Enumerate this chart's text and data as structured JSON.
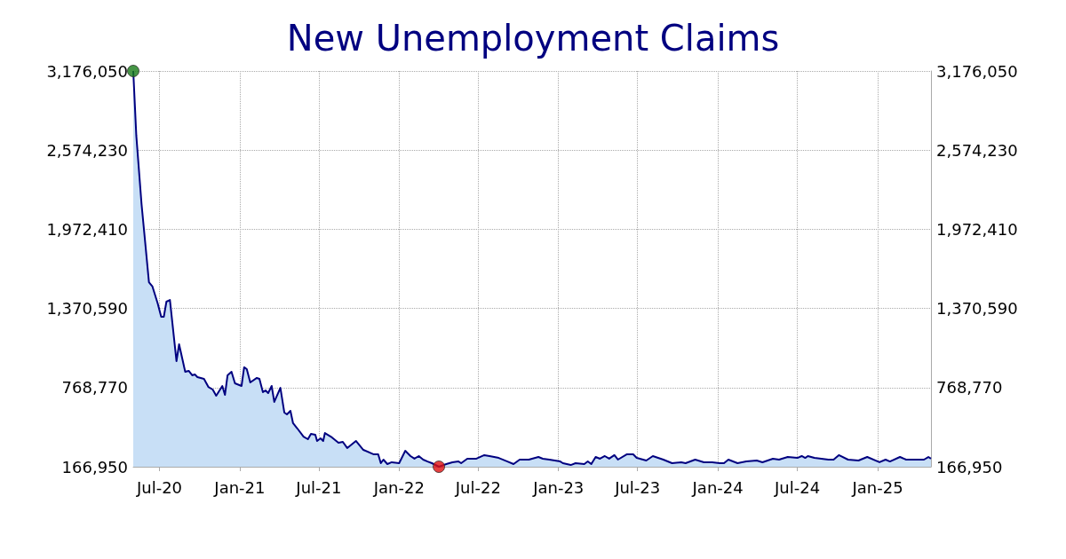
{
  "chart_data": {
    "type": "area",
    "title": "New Unemployment Claims",
    "marker": "none",
    "line_style": "solid",
    "grid": true,
    "xlim": [
      "2020-05-02",
      "2025-05-03"
    ],
    "xticks": [
      {
        "value": "2020-07-01",
        "label": "Jul-20"
      },
      {
        "value": "2021-01-01",
        "label": "Jan-21"
      },
      {
        "value": "2021-07-01",
        "label": "Jul-21"
      },
      {
        "value": "2022-01-01",
        "label": "Jan-22"
      },
      {
        "value": "2022-07-01",
        "label": "Jul-22"
      },
      {
        "value": "2023-01-01",
        "label": "Jan-23"
      },
      {
        "value": "2023-07-01",
        "label": "Jul-23"
      },
      {
        "value": "2024-01-01",
        "label": "Jan-24"
      },
      {
        "value": "2024-07-01",
        "label": "Jul-24"
      },
      {
        "value": "2025-01-01",
        "label": "Jan-25"
      }
    ],
    "ylim": [
      166950,
      3176050
    ],
    "yticks": [
      {
        "value": 166950,
        "label": "166,950"
      },
      {
        "value": 768770,
        "label": "768,770"
      },
      {
        "value": 1370590,
        "label": "1,370,590"
      },
      {
        "value": 1972410,
        "label": "1,972,410"
      },
      {
        "value": 2574230,
        "label": "2,574,230"
      },
      {
        "value": 3176050,
        "label": "3,176,050"
      }
    ],
    "y2lim": [
      166950,
      3176050
    ],
    "y2ticks": [
      {
        "value": 166950,
        "label": "166,950"
      },
      {
        "value": 768770,
        "label": "768,770"
      },
      {
        "value": 1370590,
        "label": "1,370,590"
      },
      {
        "value": 1972410,
        "label": "1,972,410"
      },
      {
        "value": 2574230,
        "label": "2,574,230"
      },
      {
        "value": 3176050,
        "label": "3,176,050"
      }
    ],
    "series": [
      {
        "color": "#000080",
        "x": [
          "2020-05-02",
          "2020-05-09",
          "2020-05-21",
          "2020-06-07",
          "2020-06-15",
          "2020-06-27",
          "2020-07-05",
          "2020-07-11",
          "2020-07-17",
          "2020-07-25",
          "2020-08-09",
          "2020-08-15",
          "2020-08-29",
          "2020-09-06",
          "2020-09-14",
          "2020-09-20",
          "2020-09-26",
          "2020-10-11",
          "2020-10-21",
          "2020-10-31",
          "2020-11-08",
          "2020-11-22",
          "2020-11-28",
          "2020-12-04",
          "2020-12-13",
          "2020-12-21",
          "2021-01-05",
          "2021-01-11",
          "2021-01-17",
          "2021-01-25",
          "2021-02-09",
          "2021-02-15",
          "2021-02-23",
          "2021-03-01",
          "2021-03-07",
          "2021-03-15",
          "2021-03-21",
          "2021-04-04",
          "2021-04-13",
          "2021-04-19",
          "2021-04-27",
          "2021-05-03",
          "2021-05-13",
          "2021-05-27",
          "2021-06-06",
          "2021-06-13",
          "2021-06-23",
          "2021-06-27",
          "2021-07-05",
          "2021-07-11",
          "2021-07-15",
          "2021-07-31",
          "2021-08-15",
          "2021-08-25",
          "2021-09-04",
          "2021-09-24",
          "2021-10-11",
          "2021-11-04",
          "2021-11-14",
          "2021-11-20",
          "2021-11-26",
          "2021-12-05",
          "2021-12-15",
          "2022-01-01",
          "2022-01-15",
          "2022-01-27",
          "2022-02-05",
          "2022-02-15",
          "2022-02-25",
          "2022-03-07",
          "2022-03-17",
          "2022-04-02",
          "2022-04-19",
          "2022-05-03",
          "2022-05-17",
          "2022-05-23",
          "2022-06-06",
          "2022-06-27",
          "2022-07-15",
          "2022-07-27",
          "2022-08-17",
          "2022-09-06",
          "2022-09-20",
          "2022-10-04",
          "2022-10-25",
          "2022-11-16",
          "2022-11-26",
          "2022-12-11",
          "2023-01-05",
          "2023-01-11",
          "2023-01-29",
          "2023-02-09",
          "2023-03-01",
          "2023-03-09",
          "2023-03-17",
          "2023-03-27",
          "2023-04-06",
          "2023-04-17",
          "2023-04-27",
          "2023-05-09",
          "2023-05-17",
          "2023-06-06",
          "2023-06-21",
          "2023-06-29",
          "2023-07-21",
          "2023-08-05",
          "2023-08-29",
          "2023-09-18",
          "2023-10-09",
          "2023-10-19",
          "2023-11-10",
          "2023-11-30",
          "2023-12-19",
          "2024-01-05",
          "2024-01-15",
          "2024-01-25",
          "2024-02-15",
          "2024-02-25",
          "2024-03-06",
          "2024-03-30",
          "2024-04-12",
          "2024-05-06",
          "2024-05-20",
          "2024-06-09",
          "2024-07-01",
          "2024-07-11",
          "2024-07-19",
          "2024-07-25",
          "2024-08-09",
          "2024-09-10",
          "2024-09-22",
          "2024-10-04",
          "2024-10-25",
          "2024-11-18",
          "2024-12-08",
          "2025-01-05",
          "2025-01-19",
          "2025-01-29",
          "2025-02-21",
          "2025-03-07",
          "2025-04-02",
          "2025-04-17",
          "2025-04-27",
          "2025-05-03"
        ],
        "values": [
          3176050,
          2684000,
          2164000,
          1570000,
          1537000,
          1408000,
          1307000,
          1307000,
          1422000,
          1435000,
          970000,
          1098000,
          889000,
          896000,
          862000,
          869000,
          848000,
          835000,
          774000,
          754000,
          707000,
          781000,
          713000,
          862000,
          889000,
          801000,
          781000,
          923000,
          909000,
          808000,
          842000,
          835000,
          734000,
          747000,
          727000,
          781000,
          660000,
          767000,
          579000,
          565000,
          592000,
          498000,
          457000,
          396000,
          376000,
          417000,
          410000,
          363000,
          383000,
          363000,
          423000,
          390000,
          349000,
          356000,
          309000,
          363000,
          295000,
          261000,
          261000,
          194000,
          221000,
          187000,
          201000,
          194000,
          288000,
          248000,
          228000,
          248000,
          221000,
          207000,
          194000,
          166950,
          187000,
          201000,
          207000,
          194000,
          228000,
          228000,
          255000,
          248000,
          234000,
          207000,
          187000,
          221000,
          221000,
          241000,
          228000,
          221000,
          207000,
          194000,
          180000,
          194000,
          187000,
          207000,
          187000,
          241000,
          228000,
          248000,
          228000,
          255000,
          221000,
          261000,
          261000,
          234000,
          214000,
          248000,
          221000,
          194000,
          201000,
          194000,
          221000,
          201000,
          201000,
          194000,
          194000,
          221000,
          194000,
          201000,
          207000,
          214000,
          201000,
          228000,
          221000,
          241000,
          234000,
          248000,
          234000,
          248000,
          234000,
          221000,
          221000,
          255000,
          221000,
          214000,
          241000,
          201000,
          221000,
          207000,
          241000,
          221000,
          221000,
          221000,
          241000,
          228000
        ]
      },
      {
        "type": "scatter",
        "marker": "circle",
        "x": [
          "2020-05-02",
          "2022-04-02"
        ],
        "values": [
          3176050,
          166950
        ],
        "colors": [
          "#167a16",
          "#e01010"
        ]
      }
    ]
  }
}
